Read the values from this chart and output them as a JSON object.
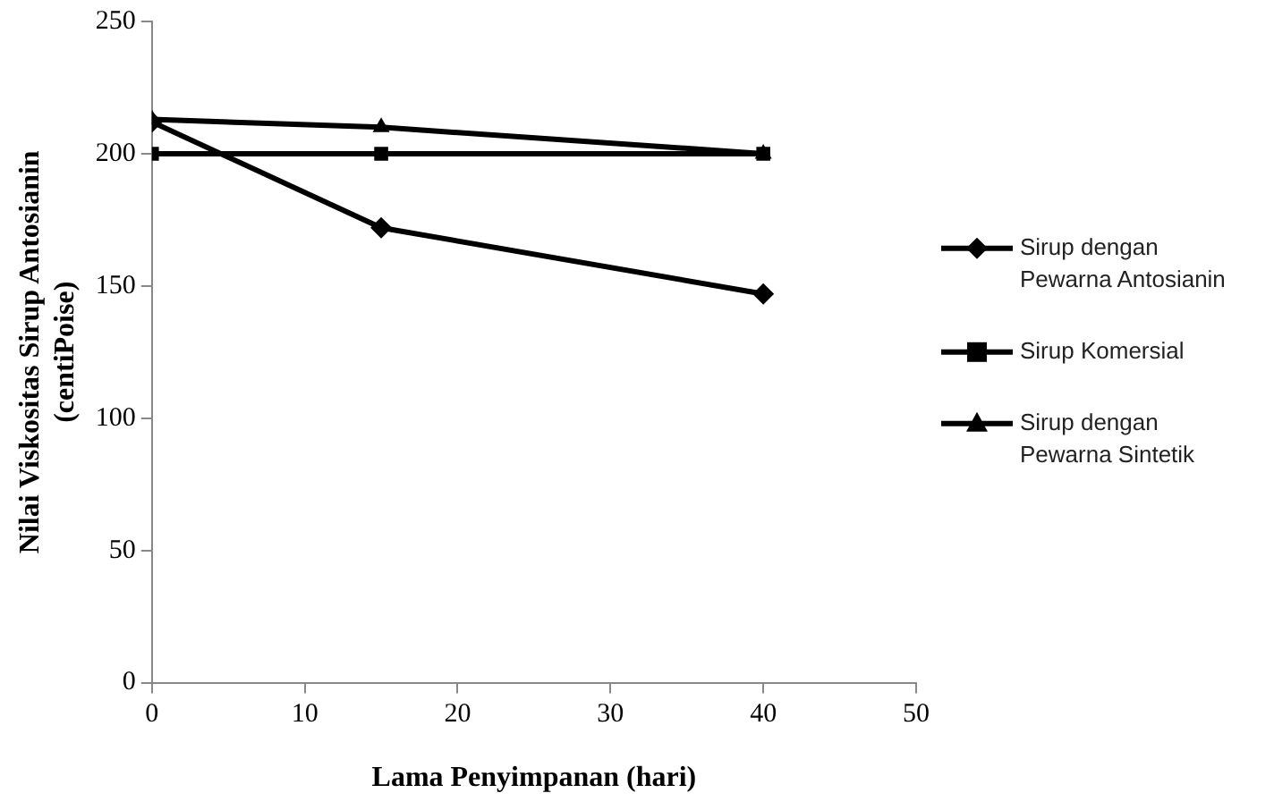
{
  "chart_data": {
    "type": "line",
    "xlabel": "Lama Penyimpanan (hari)",
    "ylabel": "Nilai Viskositas Sirup Antosianin (centiPoise)",
    "x": [
      0,
      15,
      40
    ],
    "xlim": [
      0,
      50
    ],
    "xticks": [
      0,
      10,
      20,
      30,
      40,
      50
    ],
    "ylim": [
      0,
      250
    ],
    "yticks": [
      0,
      50,
      100,
      150,
      200,
      250
    ],
    "grid": false,
    "legend": "right",
    "line_style": "solid",
    "series": [
      {
        "name": "Sirup dengan Pewarna Antosianin",
        "color": "#000000",
        "marker": "diamond",
        "values": [
          212,
          172,
          147
        ]
      },
      {
        "name": "Sirup Komersial",
        "color": "#000000",
        "marker": "square",
        "values": [
          200,
          200,
          200
        ]
      },
      {
        "name": "Sirup dengan Pewarna Sintetik",
        "color": "#000000",
        "marker": "triangle",
        "values": [
          213,
          210,
          200
        ]
      }
    ]
  }
}
